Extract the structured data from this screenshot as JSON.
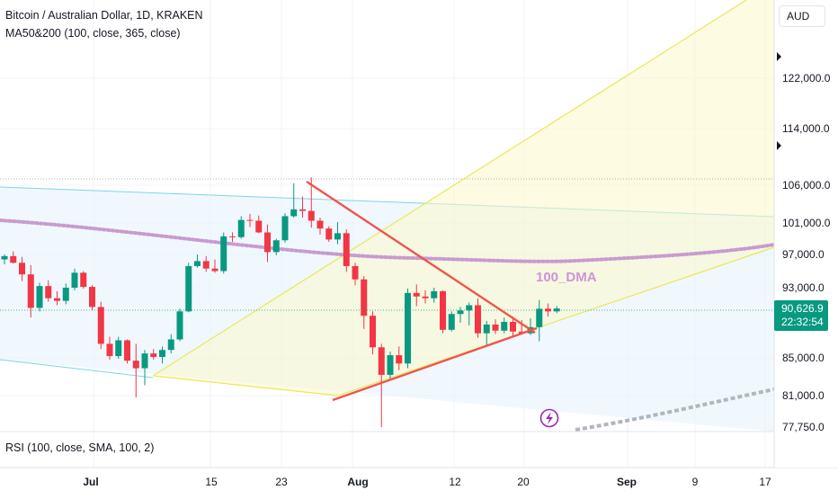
{
  "header": {
    "symbol_line": "Bitcoin / Australian Dollar, 1D, KRAKEN",
    "indicator_line": "MA50&200 (100, close, 365, close)"
  },
  "rsi_label": "RSI (100, close, SMA, 100, 2)",
  "currency_button": "AUD",
  "price_tag": {
    "price": "90,626.9",
    "countdown": "22:32:54"
  },
  "annotation": {
    "text": "100_DMA"
  },
  "colors": {
    "up": "#089981",
    "down": "#f23645",
    "trendline": "#f0544f",
    "ma_dots": "#c79bd0",
    "gray_dots": "#b2b5be",
    "yellow_line": "#e8e85a",
    "channel_line": "#80d4e6",
    "tag_bg": "#089981"
  },
  "icons": {
    "alert": "lightning-icon"
  },
  "chart_data": {
    "type": "candlestick",
    "title": "Bitcoin / Australian Dollar, 1D, KRAKEN",
    "y_axis_labels": [
      "122,000.0",
      "114,000.0",
      "106,000.0",
      "101,000.0",
      "97,000.0",
      "93,000.0",
      "85,000.0",
      "81,000.0",
      "77,750.0"
    ],
    "x_axis_labels": [
      "Jul",
      "15",
      "23",
      "Aug",
      "12",
      "20",
      "Sep",
      "9",
      "17"
    ],
    "ylim": [
      77750,
      125000
    ],
    "last_price": 90626.9,
    "candles": [
      [
        96400,
        97000,
        95800,
        96800
      ],
      [
        96800,
        97400,
        95900,
        96000
      ],
      [
        96000,
        96700,
        93800,
        94600
      ],
      [
        94600,
        95700,
        89600,
        90700
      ],
      [
        90700,
        93600,
        90300,
        93200
      ],
      [
        93200,
        93900,
        91400,
        91800
      ],
      [
        91800,
        92600,
        91000,
        91500
      ],
      [
        91500,
        93500,
        91100,
        93000
      ],
      [
        93000,
        95300,
        92700,
        94800
      ],
      [
        94800,
        95000,
        92900,
        93100
      ],
      [
        93100,
        93300,
        90400,
        90800
      ],
      [
        90800,
        91400,
        86000,
        86600
      ],
      [
        86600,
        87400,
        84800,
        85200
      ],
      [
        85200,
        87400,
        84900,
        87000
      ],
      [
        87000,
        87100,
        84400,
        84700
      ],
      [
        84700,
        86600,
        80800,
        83900
      ],
      [
        83900,
        85900,
        82100,
        85500
      ],
      [
        85500,
        86000,
        84800,
        85100
      ],
      [
        85100,
        86300,
        84400,
        85900
      ],
      [
        85900,
        87700,
        85500,
        87100
      ],
      [
        87100,
        90600,
        86900,
        90300
      ],
      [
        90300,
        96000,
        90200,
        95600
      ],
      [
        95600,
        97000,
        95400,
        96200
      ],
      [
        96200,
        96800,
        94900,
        95300
      ],
      [
        95300,
        96400,
        94800,
        95000
      ],
      [
        95000,
        99800,
        94700,
        99300
      ],
      [
        99300,
        99800,
        98600,
        99200
      ],
      [
        99200,
        101900,
        99000,
        101400
      ],
      [
        101400,
        102200,
        100500,
        101300
      ],
      [
        101300,
        102000,
        99700,
        99800
      ],
      [
        99800,
        100800,
        96100,
        97300
      ],
      [
        97300,
        99000,
        96900,
        98800
      ],
      [
        98800,
        102300,
        98500,
        101900
      ],
      [
        101900,
        106300,
        101700,
        102800
      ],
      [
        102800,
        104500,
        101700,
        102600
      ],
      [
        102600,
        107100,
        100400,
        101300
      ],
      [
        101300,
        101700,
        99500,
        100300
      ],
      [
        100300,
        100600,
        98600,
        98900
      ],
      [
        98900,
        101100,
        98300,
        99700
      ],
      [
        99700,
        100200,
        94900,
        95600
      ],
      [
        95600,
        96000,
        93300,
        94000
      ],
      [
        94000,
        94400,
        88300,
        89800
      ],
      [
        89800,
        90300,
        85400,
        86200
      ],
      [
        86200,
        86600,
        77750,
        83200
      ],
      [
        83200,
        85700,
        82600,
        85300
      ],
      [
        85300,
        86300,
        83700,
        84400
      ],
      [
        84400,
        92900,
        83900,
        92400
      ],
      [
        92400,
        93400,
        90900,
        92000
      ],
      [
        92000,
        92700,
        91200,
        91800
      ],
      [
        91800,
        93000,
        91300,
        92600
      ],
      [
        92600,
        92700,
        87800,
        88200
      ],
      [
        88200,
        90300,
        88000,
        90000
      ],
      [
        90000,
        90800,
        89000,
        90400
      ],
      [
        90400,
        91300,
        88700,
        91000
      ],
      [
        91000,
        91800,
        87300,
        87800
      ],
      [
        87800,
        89200,
        86300,
        88800
      ],
      [
        88800,
        89400,
        87700,
        88100
      ],
      [
        88100,
        89600,
        87800,
        89100
      ],
      [
        89100,
        89700,
        87500,
        88000
      ],
      [
        88000,
        89300,
        87700,
        87800
      ],
      [
        87800,
        89500,
        87600,
        88500
      ],
      [
        88500,
        91600,
        86900,
        90600
      ],
      [
        90600,
        91200,
        89700,
        90300
      ],
      [
        90300,
        90900,
        90100,
        90627
      ]
    ],
    "annotations": [
      "100_DMA"
    ]
  }
}
